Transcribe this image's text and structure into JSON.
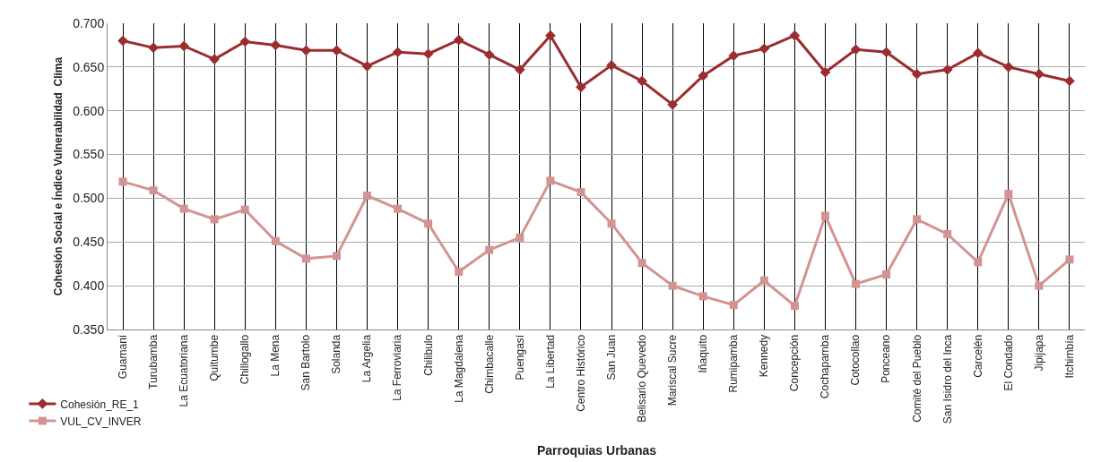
{
  "chart_data": {
    "type": "line",
    "xlabel": "Parroquias Urbanas",
    "ylabel": "Cohesión Social e Índice Vulnerabilidad  Clima",
    "categories": [
      "Guamaní",
      "Turubamba",
      "La Ecuatoriana",
      "Quitumbe",
      "Chillogallo",
      "La Mena",
      "San Bartolo",
      "Solanda",
      "La Argelia",
      "La Ferroviaria",
      "Chilibulo",
      "La Magdalena",
      "Chimbacalle",
      "Puengasí",
      "La Libertad",
      "Centro Histórico",
      "San Juan",
      "Belisario Quevedo",
      "Mariscal Sucre",
      "Iñaquito",
      "Rumipamba",
      "Kennedy",
      "Concepción",
      "Cochapamba",
      "Cotocollao",
      "Ponceano",
      "Comité del Pueblo",
      "San Isidro del Inca",
      "Carcelén",
      "El Condado",
      "Jipijapa",
      "Itchimbía"
    ],
    "series": [
      {
        "name": "Cohesión_RE_1",
        "color": "#9b2d30",
        "marker": "diamond",
        "values": [
          0.68,
          0.672,
          0.674,
          0.659,
          0.679,
          0.675,
          0.669,
          0.669,
          0.651,
          0.667,
          0.665,
          0.681,
          0.664,
          0.647,
          0.686,
          0.627,
          0.652,
          0.634,
          0.607,
          0.64,
          0.663,
          0.671,
          0.686,
          0.644,
          0.67,
          0.667,
          0.642,
          0.647,
          0.666,
          0.65,
          0.642,
          0.634
        ]
      },
      {
        "name": "VUL_CV_INVER",
        "color": "#d49393",
        "marker": "square",
        "values": [
          0.519,
          0.509,
          0.488,
          0.476,
          0.487,
          0.451,
          0.431,
          0.434,
          0.503,
          0.488,
          0.471,
          0.416,
          0.441,
          0.455,
          0.52,
          0.507,
          0.471,
          0.426,
          0.4,
          0.388,
          0.378,
          0.406,
          0.377,
          0.48,
          0.402,
          0.413,
          0.476,
          0.459,
          0.427,
          0.505,
          0.4,
          0.43
        ]
      }
    ],
    "ylim": [
      0.35,
      0.7
    ],
    "yticks": [
      {
        "value": 0.35,
        "label": "0.350"
      },
      {
        "value": 0.4,
        "label": "0.400"
      },
      {
        "value": 0.45,
        "label": "0.450"
      },
      {
        "value": 0.5,
        "label": "0.500"
      },
      {
        "value": 0.55,
        "label": "0.550"
      },
      {
        "value": 0.6,
        "label": "0.600"
      },
      {
        "value": 0.65,
        "label": "0.650"
      },
      {
        "value": 0.7,
        "label": "0.700"
      }
    ],
    "grid": true,
    "legend": "bottom left",
    "line_style": "solid"
  }
}
